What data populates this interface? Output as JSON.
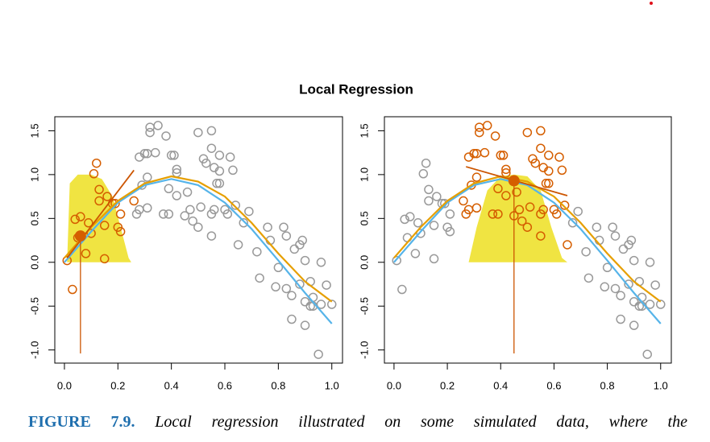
{
  "title": "Local Regression",
  "caption": {
    "label": "FIGURE 7.9.",
    "text": "Local regression illustrated on some simulated data, where the"
  },
  "chart_data": [
    {
      "type": "scatter",
      "xlim": [
        -0.036,
        1.04
      ],
      "ylim": [
        -1.15,
        1.66
      ],
      "xticks": [
        {
          "value": 0,
          "label": "0.0"
        },
        0.2,
        0.4,
        0.6,
        0.8,
        {
          "value": 1,
          "label": "1.0"
        }
      ],
      "yticks": [
        {
          "value": -1,
          "label": "-1.0"
        },
        -0.5,
        {
          "value": 0,
          "label": "0.0"
        },
        0.5,
        {
          "value": 1,
          "label": "1.0"
        },
        1.5
      ],
      "kernel": {
        "color": "#f0e442",
        "x": [
          0.01,
          0.02,
          0.05,
          0.1,
          0.14,
          0.18,
          0.21,
          0.24,
          0.25
        ],
        "values": [
          0,
          0.9,
          1.0,
          1.0,
          0.95,
          0.75,
          0.4,
          0.05,
          0
        ]
      },
      "series": [
        {
          "color": "#999999",
          "x": [
            0.27,
            0.28,
            0.28,
            0.29,
            0.3,
            0.31,
            0.31,
            0.31,
            0.32,
            0.32,
            0.34,
            0.35,
            0.38,
            0.37,
            0.39,
            0.4,
            0.41,
            0.39,
            0.42,
            0.42,
            0.42,
            0.45,
            0.46,
            0.47,
            0.48,
            0.5,
            0.51,
            0.5,
            0.52,
            0.53,
            0.55,
            0.55,
            0.56,
            0.58,
            0.58,
            0.55,
            0.56,
            0.55,
            0.57,
            0.58,
            0.6,
            0.61,
            0.62,
            0.63,
            0.64,
            0.65,
            0.67,
            0.69,
            0.72,
            0.73,
            0.76,
            0.77,
            0.8,
            0.79,
            0.82,
            0.83,
            0.83,
            0.85,
            0.86,
            0.85,
            0.88,
            0.89,
            0.88,
            0.9,
            0.9,
            0.9,
            0.92,
            0.93,
            0.92,
            0.93,
            0.95,
            0.96,
            0.96,
            0.98,
            1.0
          ],
          "values": [
            0.55,
            0.6,
            1.2,
            0.88,
            1.24,
            1.24,
            0.62,
            0.97,
            1.54,
            1.48,
            1.25,
            1.56,
            1.44,
            0.55,
            0.55,
            1.22,
            1.22,
            0.84,
            1.06,
            1.02,
            0.76,
            0.53,
            0.8,
            0.6,
            0.47,
            0.4,
            0.63,
            1.48,
            1.18,
            1.13,
            1.5,
            1.3,
            1.08,
            1.22,
            1.04,
            0.55,
            0.6,
            0.3,
            0.9,
            0.9,
            0.6,
            0.55,
            1.2,
            1.05,
            0.65,
            0.2,
            0.45,
            0.58,
            0.12,
            -0.18,
            0.4,
            0.25,
            -0.06,
            -0.28,
            0.4,
            0.3,
            -0.3,
            -0.38,
            0.15,
            -0.65,
            0.2,
            0.25,
            -0.25,
            -0.45,
            0.02,
            -0.72,
            -0.22,
            -0.4,
            -0.5,
            -0.5,
            -1.05,
            -0.48,
            0.0,
            -0.26,
            -0.48
          ]
        },
        {
          "color": "#d55e00",
          "x": [
            0.01,
            0.03,
            0.04,
            0.05,
            0.06,
            0.08,
            0.09,
            0.1,
            0.11,
            0.12,
            0.13,
            0.13,
            0.15,
            0.15,
            0.16,
            0.18,
            0.19,
            0.2,
            0.21,
            0.21,
            0.26
          ],
          "values": [
            0.02,
            -0.31,
            0.49,
            0.28,
            0.52,
            0.1,
            0.45,
            0.33,
            1.01,
            1.13,
            0.83,
            0.7,
            0.04,
            0.42,
            0.75,
            0.67,
            0.67,
            0.4,
            0.55,
            0.35,
            0.7
          ]
        }
      ],
      "true_curve": {
        "color": "#56b4e9",
        "x": [
          0,
          0.1,
          0.2,
          0.3,
          0.4,
          0.5,
          0.6,
          0.7,
          0.8,
          0.9,
          1.0
        ],
        "values": [
          0.0,
          0.35,
          0.68,
          0.88,
          0.95,
          0.88,
          0.68,
          0.38,
          0.02,
          -0.35,
          -0.7
        ]
      },
      "fit_curve": {
        "color": "#e69f00",
        "x": [
          0,
          0.1,
          0.2,
          0.3,
          0.4,
          0.5,
          0.6,
          0.7,
          0.8,
          0.9,
          1.0
        ],
        "values": [
          0.05,
          0.4,
          0.7,
          0.9,
          0.98,
          0.92,
          0.75,
          0.45,
          0.1,
          -0.22,
          -0.45
        ]
      },
      "local_fit": {
        "color": "#cc5500",
        "x": [
          0.01,
          0.26
        ],
        "values": [
          0.05,
          1.05
        ]
      },
      "target": {
        "color": "#d55e00",
        "x": 0.06,
        "y": 0.3
      }
    },
    {
      "type": "scatter",
      "xlim": [
        -0.036,
        1.04
      ],
      "ylim": [
        -1.15,
        1.66
      ],
      "xticks": [
        {
          "value": 0,
          "label": "0.0"
        },
        0.2,
        0.4,
        0.6,
        0.8,
        {
          "value": 1,
          "label": "1.0"
        }
      ],
      "yticks": [
        {
          "value": -1,
          "label": "-1.0"
        },
        -0.5,
        {
          "value": 0,
          "label": "0.0"
        },
        0.5,
        {
          "value": 1,
          "label": "1.0"
        },
        1.5
      ],
      "kernel": {
        "color": "#f0e442",
        "x": [
          0.28,
          0.31,
          0.35,
          0.4,
          0.45,
          0.5,
          0.55,
          0.59,
          0.63,
          0.65
        ],
        "values": [
          0,
          0.4,
          0.82,
          0.98,
          1.0,
          0.98,
          0.82,
          0.4,
          0.05,
          0
        ]
      },
      "series": [
        {
          "color": "#999999",
          "x": [
            0.01,
            0.03,
            0.04,
            0.05,
            0.06,
            0.08,
            0.09,
            0.1,
            0.11,
            0.12,
            0.13,
            0.13,
            0.15,
            0.15,
            0.16,
            0.18,
            0.19,
            0.2,
            0.21,
            0.21,
            0.67,
            0.69,
            0.72,
            0.73,
            0.76,
            0.77,
            0.8,
            0.79,
            0.82,
            0.83,
            0.83,
            0.85,
            0.86,
            0.85,
            0.88,
            0.89,
            0.88,
            0.9,
            0.9,
            0.9,
            0.92,
            0.93,
            0.92,
            0.93,
            0.95,
            0.96,
            0.96,
            0.98,
            1.0
          ],
          "values": [
            0.02,
            -0.31,
            0.49,
            0.28,
            0.52,
            0.1,
            0.45,
            0.33,
            1.01,
            1.13,
            0.83,
            0.7,
            0.04,
            0.42,
            0.75,
            0.67,
            0.67,
            0.4,
            0.55,
            0.35,
            0.45,
            0.58,
            0.12,
            -0.18,
            0.4,
            0.25,
            -0.06,
            -0.28,
            0.4,
            0.3,
            -0.3,
            -0.38,
            0.15,
            -0.65,
            0.2,
            0.25,
            -0.25,
            -0.45,
            0.02,
            -0.72,
            -0.22,
            -0.4,
            -0.5,
            -0.5,
            -1.05,
            -0.48,
            0.0,
            -0.26,
            -0.48
          ]
        },
        {
          "color": "#d55e00",
          "x": [
            0.26,
            0.27,
            0.28,
            0.28,
            0.29,
            0.3,
            0.31,
            0.31,
            0.31,
            0.32,
            0.32,
            0.34,
            0.35,
            0.38,
            0.37,
            0.39,
            0.4,
            0.41,
            0.39,
            0.42,
            0.42,
            0.42,
            0.45,
            0.46,
            0.47,
            0.48,
            0.5,
            0.51,
            0.5,
            0.52,
            0.53,
            0.55,
            0.55,
            0.56,
            0.58,
            0.58,
            0.55,
            0.56,
            0.55,
            0.57,
            0.58,
            0.6,
            0.61,
            0.62,
            0.63,
            0.64,
            0.65
          ],
          "values": [
            0.7,
            0.55,
            0.6,
            1.2,
            0.88,
            1.24,
            1.24,
            0.62,
            0.97,
            1.54,
            1.48,
            1.25,
            1.56,
            1.44,
            0.55,
            0.55,
            1.22,
            1.22,
            0.84,
            1.06,
            1.02,
            0.76,
            0.53,
            0.8,
            0.6,
            0.47,
            0.4,
            0.63,
            1.48,
            1.18,
            1.13,
            1.5,
            1.3,
            1.08,
            1.22,
            1.04,
            0.55,
            0.6,
            0.3,
            0.9,
            0.9,
            0.6,
            0.55,
            1.2,
            1.05,
            0.65,
            0.2
          ]
        }
      ],
      "true_curve": {
        "color": "#56b4e9",
        "x": [
          0,
          0.1,
          0.2,
          0.3,
          0.4,
          0.5,
          0.6,
          0.7,
          0.8,
          0.9,
          1.0
        ],
        "values": [
          0.0,
          0.35,
          0.68,
          0.88,
          0.95,
          0.88,
          0.68,
          0.38,
          0.02,
          -0.35,
          -0.7
        ]
      },
      "fit_curve": {
        "color": "#e69f00",
        "x": [
          0,
          0.1,
          0.2,
          0.3,
          0.4,
          0.5,
          0.6,
          0.7,
          0.8,
          0.9,
          1.0
        ],
        "values": [
          0.05,
          0.4,
          0.7,
          0.9,
          0.98,
          0.92,
          0.75,
          0.45,
          0.1,
          -0.22,
          -0.45
        ]
      },
      "local_fit": {
        "color": "#cc5500",
        "x": [
          0.27,
          0.65
        ],
        "values": [
          1.09,
          0.76
        ]
      },
      "target": {
        "color": "#d55e00",
        "x": 0.45,
        "y": 0.93
      }
    }
  ]
}
